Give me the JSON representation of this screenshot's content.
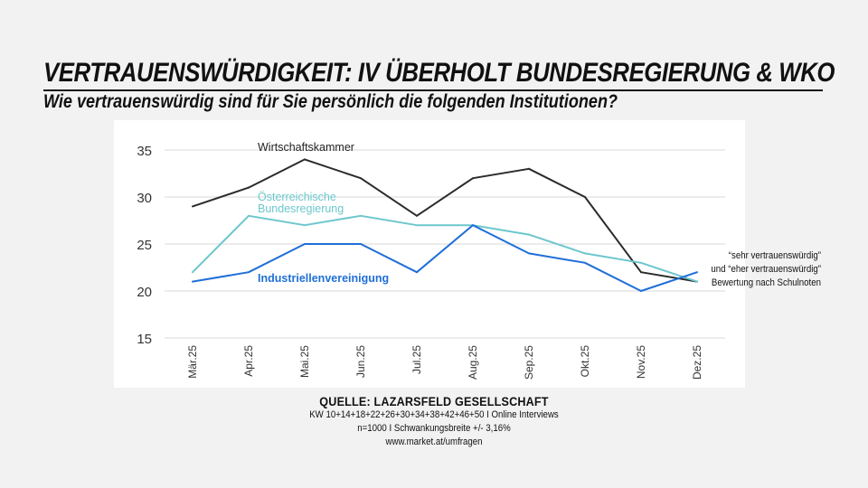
{
  "header": {
    "title": "VERTRAUENSWÜRDIGKEIT: IV ÜBERHOLT BUNDESREGIERUNG & WKO",
    "subtitle": "Wie vertrauenswürdig sind für Sie persönlich die folgenden Institutionen?"
  },
  "note": {
    "line1": "“sehr vertrauenswürdig”",
    "line2": "und “eher vertrauenswürdig”",
    "line3": "Bewertung nach Schulnoten"
  },
  "source": {
    "title": "QUELLE: LAZARSFELD GESELLSCHAFT",
    "line1": "KW 10+14+18+22+26+30+34+38+42+46+50 I Online Interviews",
    "line2": "n=1000 I Schwankungsbreite +/- 3,16%",
    "line3": "www.market.at/umfragen"
  },
  "colors": {
    "background": "#f2f2f2",
    "panel": "#ffffff",
    "grid": "#d9d9d9",
    "wko": "#2b2b2b",
    "bundesregierung": "#6cc7cc",
    "iv": "#1f6fd8"
  },
  "chart_data": {
    "type": "line",
    "categories": [
      "Mär.25",
      "Apr.25",
      "Mai.25",
      "Jun.25",
      "Jul.25",
      "Aug.25",
      "Sep.25",
      "Okt.25",
      "Nov.25",
      "Dez.25"
    ],
    "ylim": [
      15,
      35
    ],
    "yticks": [
      15,
      20,
      25,
      30,
      35
    ],
    "grid": true,
    "series": [
      {
        "name": "Wirtschaftskammer",
        "label_lines": [
          "Wirtschaftskammer"
        ],
        "color": "#2b2b2b",
        "values": [
          29,
          31,
          34,
          32,
          28,
          32,
          33,
          30,
          22,
          21
        ]
      },
      {
        "name": "Österreichische Bundesregierung",
        "label_lines": [
          "Österreichische",
          "Bundesregierung"
        ],
        "color": "#6cc7cc",
        "values": [
          22,
          28,
          27,
          28,
          27,
          27,
          26,
          24,
          23,
          21
        ]
      },
      {
        "name": "Industriellenvereinigung",
        "label_lines": [
          "Industriellenvereinigung"
        ],
        "color": "#1f6fd8",
        "values": [
          21,
          22,
          25,
          25,
          22,
          27,
          24,
          23,
          20,
          22
        ]
      }
    ]
  }
}
